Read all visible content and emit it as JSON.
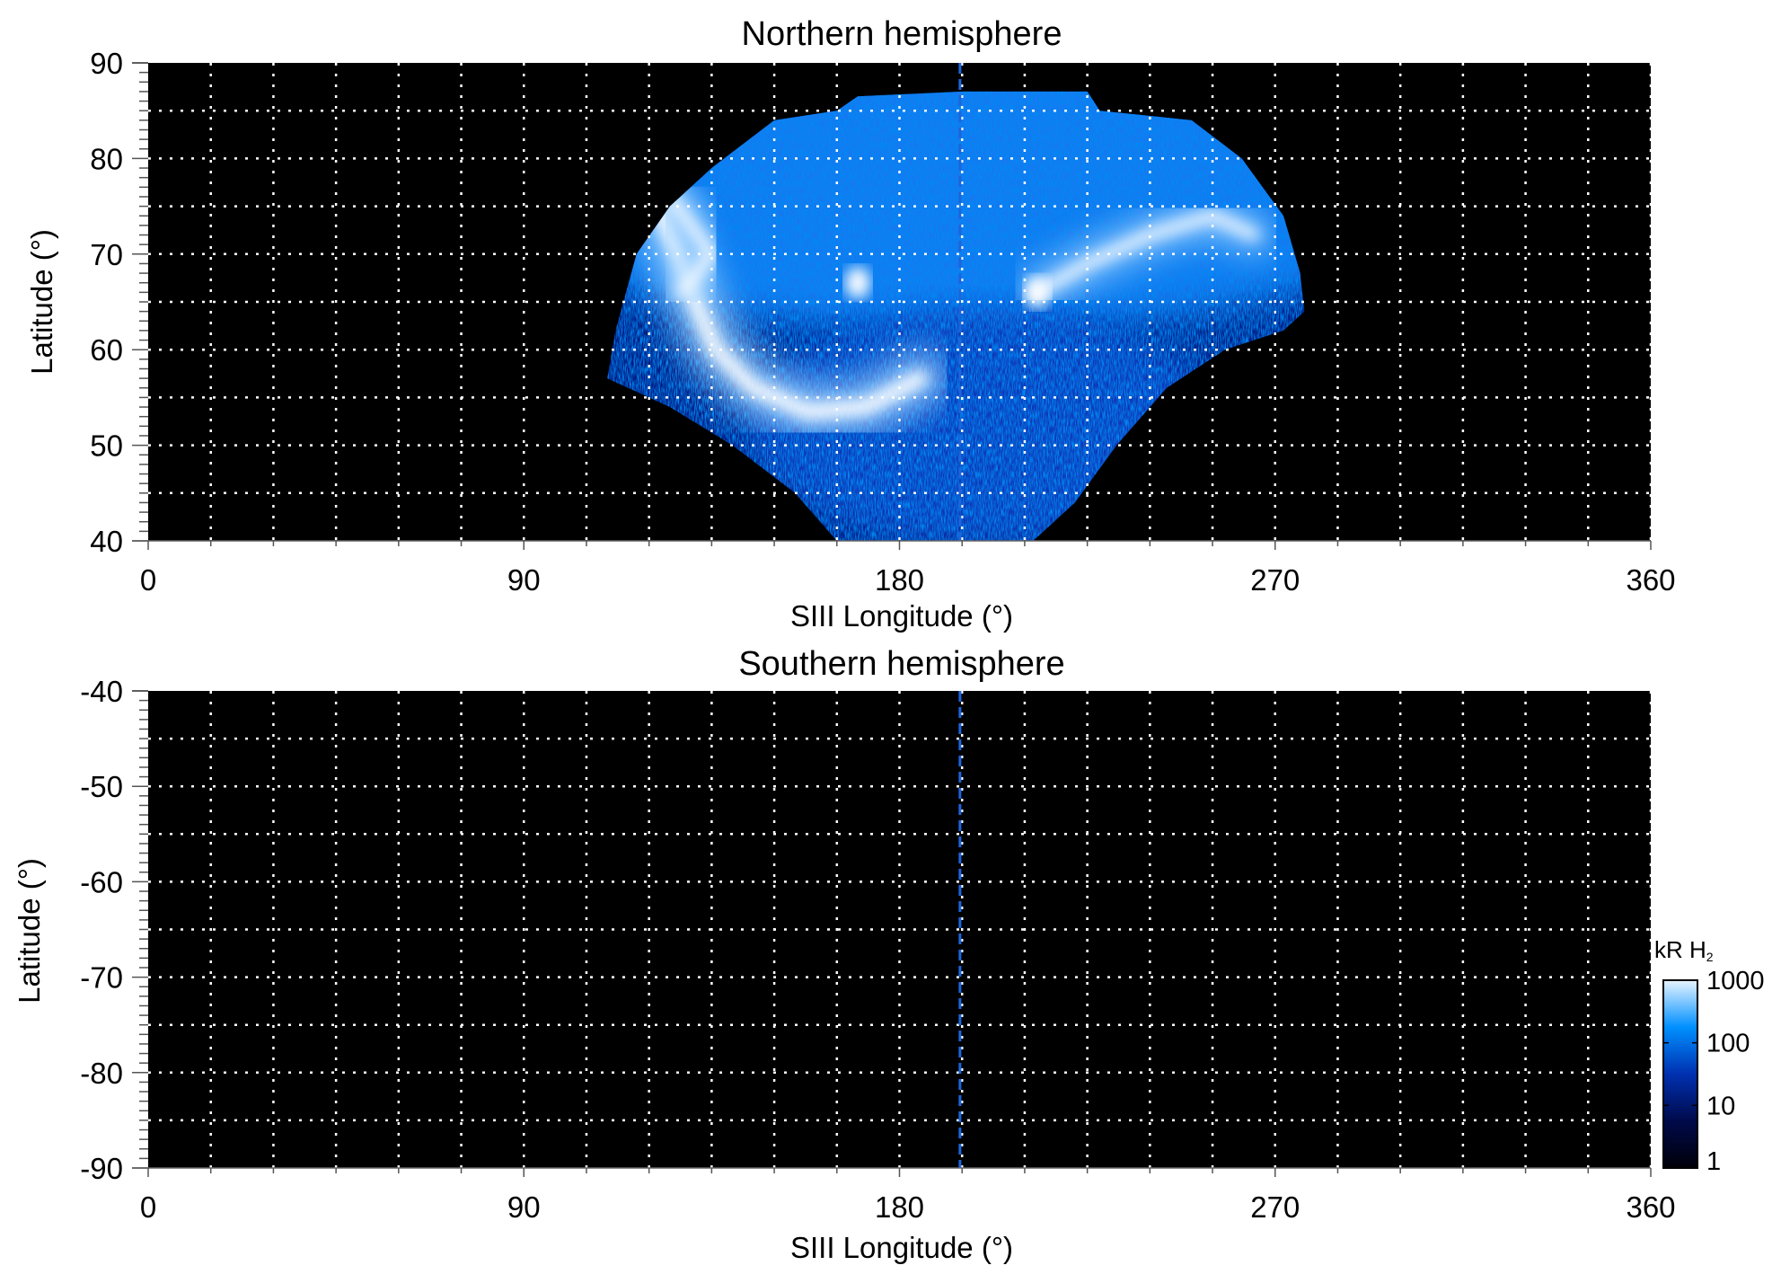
{
  "chart_data": [
    {
      "type": "heatmap",
      "title": "Northern hemisphere",
      "xlabel": "SIII Longitude (°)",
      "ylabel": "Latitude (°)",
      "xlim": [
        0,
        360
      ],
      "ylim": [
        40,
        90
      ],
      "xticks": [
        "0",
        "90",
        "180",
        "270",
        "360"
      ],
      "yticks": [
        "40",
        "50",
        "60",
        "70",
        "80",
        "90"
      ],
      "grid": true,
      "grid_x_step": 15,
      "grid_y_step": 5,
      "marker_longitude": 194.5,
      "emission_outline": [
        [
          110,
          57
        ],
        [
          112,
          62
        ],
        [
          117,
          70
        ],
        [
          125,
          75
        ],
        [
          135,
          79
        ],
        [
          150,
          84
        ],
        [
          165,
          85
        ],
        [
          170,
          86.5
        ],
        [
          195,
          87
        ],
        [
          225,
          87
        ],
        [
          228,
          85
        ],
        [
          250,
          84
        ],
        [
          262,
          80
        ],
        [
          272,
          74
        ],
        [
          276,
          68
        ],
        [
          277,
          64
        ],
        [
          272,
          62
        ],
        [
          258,
          60
        ],
        [
          244,
          56
        ],
        [
          232,
          50
        ],
        [
          222,
          44
        ],
        [
          212,
          40
        ],
        [
          165,
          40
        ],
        [
          155,
          45
        ],
        [
          140,
          50
        ],
        [
          125,
          54
        ],
        [
          110,
          57
        ]
      ],
      "bright_features": [
        {
          "path": [
            [
              122,
              75
            ],
            [
              127,
              70
            ],
            [
              131,
              65
            ],
            [
              136,
              60
            ],
            [
              145,
              56
            ],
            [
              158,
              53.5
            ],
            [
              172,
              54
            ],
            [
              185,
              57
            ]
          ],
          "level": 1000
        },
        {
          "path": [
            [
              213,
              66
            ],
            [
              225,
              69
            ],
            [
              240,
              72
            ],
            [
              255,
              74
            ],
            [
              265,
              72
            ]
          ],
          "level": 600
        },
        {
          "path": [
            [
              170,
              67
            ]
          ],
          "level": 1000
        },
        {
          "path": [
            [
              213,
              66
            ]
          ],
          "level": 1000
        },
        {
          "path": [
            [
              125,
              76
            ],
            [
              135,
              70
            ],
            [
              128,
              66
            ]
          ],
          "level": 800
        }
      ]
    },
    {
      "type": "heatmap",
      "title": "Southern hemisphere",
      "xlabel": "SIII Longitude (°)",
      "ylabel": "Latitude (°)",
      "xlim": [
        0,
        360
      ],
      "ylim": [
        -90,
        -40
      ],
      "xticks": [
        "0",
        "90",
        "180",
        "270",
        "360"
      ],
      "yticks": [
        "-90",
        "-80",
        "-70",
        "-60",
        "-50",
        "-40"
      ],
      "grid": true,
      "grid_x_step": 15,
      "grid_y_step": 5,
      "marker_longitude": 194.5
    }
  ],
  "colorbar": {
    "label": "kR H",
    "label_subscript": "2",
    "scale": "log",
    "range": [
      1,
      1000
    ],
    "ticks": [
      "1",
      "10",
      "100",
      "1000"
    ],
    "colors": [
      "#000008",
      "#000a4a",
      "#0030b0",
      "#0090ff",
      "#e8f4ff"
    ]
  },
  "colors": {
    "background": "#000000",
    "grid": "#ffffff",
    "marker": "#1e64dc"
  }
}
